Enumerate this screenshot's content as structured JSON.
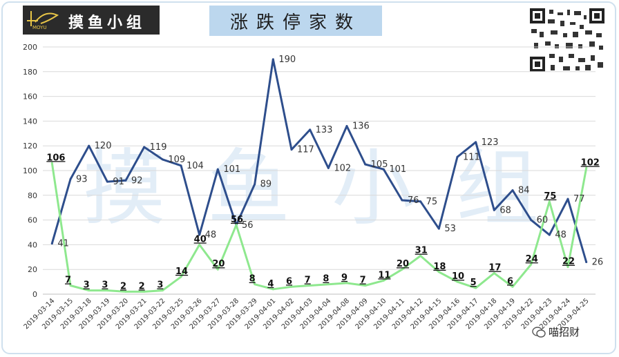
{
  "header": {
    "logo_text": "摸鱼小组",
    "logo_sub": "MOYU",
    "title": "涨跌停家数"
  },
  "watermark": "摸鱼小组",
  "credit": {
    "text": "喵招财",
    "icon": "wechat-icon"
  },
  "qr_icon": "qr-code-icon",
  "colors": {
    "limit_up": "#2e4e8c",
    "limit_down": "#8ee88e",
    "title_bg": "#bcd7ee",
    "logo_bg": "#2b2b2b"
  },
  "chart_data": {
    "type": "line",
    "title": "涨跌停家数",
    "xlabel": "",
    "ylabel": "",
    "ylim": [
      0,
      200
    ],
    "yticks": [
      0,
      20,
      40,
      60,
      80,
      100,
      120,
      140,
      160,
      180,
      200
    ],
    "grid": true,
    "categories": [
      "2019-03-14",
      "2019-03-15",
      "2019-03-18",
      "2019-03-19",
      "2019-03-20",
      "2019-03-21",
      "2019-03-22",
      "2019-03-25",
      "2019-03-26",
      "2019-03-27",
      "2019-03-28",
      "2019-03-29",
      "2019-04-01",
      "2019-04-02",
      "2019-04-03",
      "2019-04-04",
      "2019-04-08",
      "2019-04-09",
      "2019-04-10",
      "2019-04-11",
      "2019-04-12",
      "2019-04-15",
      "2019-04-16",
      "2019-04-17",
      "2019-04-18",
      "2019-04-19",
      "2019-04-22",
      "2019-04-23",
      "2019-04-24",
      "2019-04-25"
    ],
    "series": [
      {
        "name": "",
        "color": "#2e4e8c",
        "labelled": [
          false,
          true,
          false,
          true,
          true,
          true,
          true,
          true,
          true,
          true,
          true,
          true,
          true,
          true,
          true,
          true,
          true,
          true,
          true,
          true,
          true,
          true,
          true,
          true,
          true,
          true,
          true,
          true,
          true,
          true
        ],
        "values": [
          41,
          93,
          120,
          91,
          92,
          119,
          109,
          104,
          48,
          101,
          56,
          89,
          190,
          117,
          133,
          102,
          136,
          105,
          101,
          76,
          75,
          53,
          111,
          123,
          68,
          84,
          60,
          48,
          77,
          26
        ]
      },
      {
        "name": "",
        "color": "#8ee88e",
        "labelled": [
          true,
          true,
          true,
          true,
          true,
          true,
          true,
          true,
          true,
          true,
          true,
          true,
          true,
          true,
          true,
          true,
          true,
          true,
          true,
          true,
          true,
          true,
          true,
          true,
          true,
          true,
          true,
          true,
          true,
          true
        ],
        "values": [
          106,
          7,
          3,
          3,
          2,
          2,
          3,
          14,
          40,
          20,
          56,
          8,
          4,
          6,
          7,
          8,
          9,
          7,
          11,
          20,
          31,
          18,
          10,
          5,
          17,
          6,
          24,
          75,
          22,
          102
        ]
      }
    ],
    "extra_labels": {
      "series0_first": "41"
    }
  }
}
